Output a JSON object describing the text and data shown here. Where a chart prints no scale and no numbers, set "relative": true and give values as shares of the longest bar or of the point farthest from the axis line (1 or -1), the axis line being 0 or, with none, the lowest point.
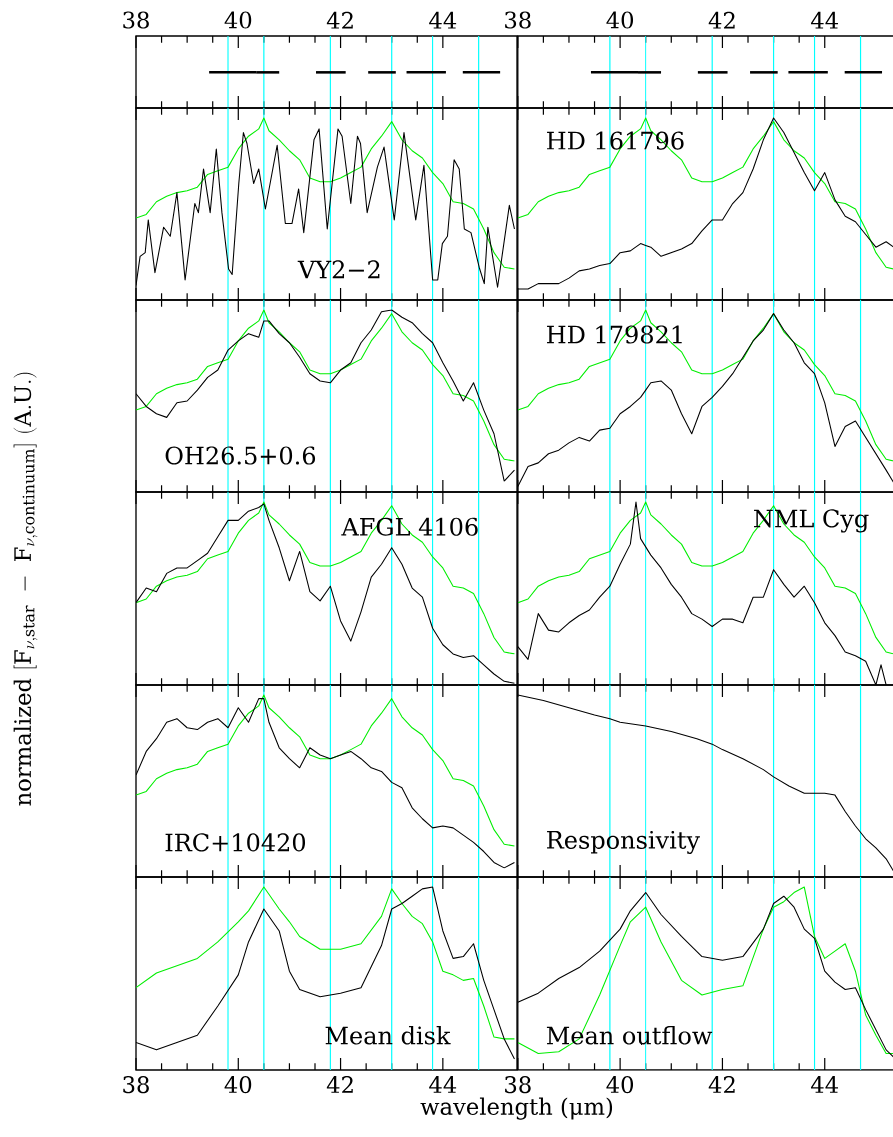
{
  "chart_data": [
    {
      "type": "bar",
      "orientation": "horizontal",
      "categories": [
        null
      ],
      "xlim": [
        38,
        45.45
      ],
      "xticks": [
        38,
        40,
        42,
        44
      ],
      "series": [
        {
          "color": "#000000",
          "base": [
            39.43
          ],
          "values": [
            0.92
          ]
        },
        {
          "color": "#000000",
          "base": [
            40.35
          ],
          "values": [
            0.45
          ]
        },
        {
          "color": "#000000",
          "base": [
            41.52
          ],
          "values": [
            0.58
          ]
        },
        {
          "color": "#000000",
          "base": [
            42.54
          ],
          "values": [
            0.54
          ]
        },
        {
          "color": "#000000",
          "base": [
            43.29
          ],
          "values": [
            0.77
          ]
        },
        {
          "color": "#000000",
          "base": [
            44.39
          ],
          "values": [
            0.73
          ]
        }
      ],
      "ref_lines": [
        {
          "axis": "x",
          "value": 39.8,
          "color": "#00ffff"
        },
        {
          "axis": "x",
          "value": 40.5,
          "color": "#00ffff"
        },
        {
          "axis": "x",
          "value": 41.8,
          "color": "#00ffff"
        },
        {
          "axis": "x",
          "value": 43.0,
          "color": "#00ffff"
        },
        {
          "axis": "x",
          "value": 43.8,
          "color": "#00ffff"
        },
        {
          "axis": "x",
          "value": 44.7,
          "color": "#00ffff"
        }
      ]
    },
    {
      "type": "bar",
      "orientation": "horizontal",
      "categories": [
        null
      ],
      "xlim": [
        38,
        45.35
      ],
      "xticks": [
        38,
        40,
        42,
        44
      ],
      "series": [
        {
          "color": "#000000",
          "base": [
            39.43
          ],
          "values": [
            0.92
          ]
        },
        {
          "color": "#000000",
          "base": [
            40.35
          ],
          "values": [
            0.45
          ]
        },
        {
          "color": "#000000",
          "base": [
            41.52
          ],
          "values": [
            0.58
          ]
        },
        {
          "color": "#000000",
          "base": [
            42.54
          ],
          "values": [
            0.54
          ]
        },
        {
          "color": "#000000",
          "base": [
            43.29
          ],
          "values": [
            0.77
          ]
        },
        {
          "color": "#000000",
          "base": [
            44.39
          ],
          "values": [
            0.73
          ]
        }
      ],
      "ref_lines": [
        {
          "axis": "x",
          "value": 39.8,
          "color": "#00ffff"
        },
        {
          "axis": "x",
          "value": 40.5,
          "color": "#00ffff"
        },
        {
          "axis": "x",
          "value": 41.8,
          "color": "#00ffff"
        },
        {
          "axis": "x",
          "value": 43.0,
          "color": "#00ffff"
        },
        {
          "axis": "x",
          "value": 43.8,
          "color": "#00ffff"
        },
        {
          "axis": "x",
          "value": 44.7,
          "color": "#00ffff"
        }
      ]
    },
    {
      "type": "line",
      "relative": true,
      "xlim": [
        38,
        45.45
      ],
      "xticks": [
        38,
        40,
        42,
        44
      ],
      "tick_labels": false,
      "annotations": [
        "VY2−2"
      ],
      "x": [
        38.0,
        38.2,
        38.4,
        38.6,
        38.8,
        39.0,
        39.2,
        39.4,
        39.6,
        39.8,
        40.0,
        40.2,
        40.4,
        40.5,
        40.6,
        40.8,
        41.0,
        41.2,
        41.4,
        41.6,
        41.8,
        42.0,
        42.2,
        42.4,
        42.6,
        42.8,
        43.0,
        43.2,
        43.4,
        43.6,
        43.8,
        44.0,
        44.2,
        44.4,
        44.6,
        44.8,
        45.0,
        45.2,
        45.4
      ],
      "series": [
        {
          "color": "#00ee00",
          "values": [
            0.45,
            0.47,
            0.54,
            0.57,
            0.59,
            0.6,
            0.62,
            0.69,
            0.71,
            0.73,
            0.83,
            0.9,
            0.94,
            1.0,
            0.93,
            0.88,
            0.82,
            0.77,
            0.67,
            0.65,
            0.65,
            0.67,
            0.7,
            0.73,
            0.83,
            0.9,
            0.98,
            0.88,
            0.82,
            0.78,
            0.7,
            0.64,
            0.54,
            0.53,
            0.5,
            0.39,
            0.26,
            0.18,
            0.17
          ]
        },
        {
          "color": "#000000",
          "x": [
            38.0,
            38.08,
            38.18,
            38.24,
            38.37,
            38.54,
            38.67,
            38.8,
            38.96,
            39.15,
            39.22,
            39.32,
            39.45,
            39.57,
            39.68,
            39.81,
            39.88,
            40.01,
            40.1,
            40.17,
            40.3,
            40.4,
            40.53,
            40.76,
            40.92,
            41.05,
            41.18,
            41.28,
            41.48,
            41.58,
            41.74,
            41.95,
            42.03,
            42.2,
            42.33,
            42.39,
            42.52,
            42.72,
            42.85,
            43.05,
            43.24,
            43.47,
            43.63,
            43.8,
            43.9,
            43.99,
            44.09,
            44.22,
            44.32,
            44.42,
            44.55,
            44.71,
            44.81,
            44.88,
            45.07,
            45.3,
            45.4
          ],
          "values": [
            0.08,
            0.24,
            0.26,
            0.44,
            0.15,
            0.4,
            0.35,
            0.59,
            0.11,
            0.53,
            0.48,
            0.72,
            0.48,
            0.83,
            0.48,
            0.17,
            0.14,
            0.64,
            0.92,
            0.86,
            0.64,
            0.72,
            0.5,
            0.85,
            0.42,
            0.42,
            0.61,
            0.37,
            0.88,
            0.94,
            0.39,
            0.94,
            0.9,
            0.53,
            0.9,
            0.86,
            0.48,
            0.73,
            0.84,
            0.44,
            0.92,
            0.44,
            0.74,
            0.11,
            0.11,
            0.31,
            0.35,
            0.77,
            0.72,
            0.39,
            0.37,
            0.18,
            0.09,
            0.4,
            0.07,
            0.52,
            0.39
          ]
        }
      ],
      "ref_lines": [
        {
          "axis": "x",
          "value": 39.8,
          "color": "#00ffff"
        },
        {
          "axis": "x",
          "value": 40.5,
          "color": "#00ffff"
        },
        {
          "axis": "x",
          "value": 41.8,
          "color": "#00ffff"
        },
        {
          "axis": "x",
          "value": 43.0,
          "color": "#00ffff"
        },
        {
          "axis": "x",
          "value": 43.8,
          "color": "#00ffff"
        },
        {
          "axis": "x",
          "value": 44.7,
          "color": "#00ffff"
        }
      ]
    },
    {
      "type": "line",
      "relative": true,
      "xlim": [
        38,
        45.35
      ],
      "xticks": [
        38,
        40,
        42,
        44
      ],
      "tick_labels": false,
      "annotations": [
        "HD 161796"
      ],
      "x": [
        38.0,
        38.2,
        38.4,
        38.6,
        38.8,
        39.0,
        39.2,
        39.4,
        39.6,
        39.8,
        40.0,
        40.2,
        40.4,
        40.5,
        40.6,
        40.8,
        41.0,
        41.2,
        41.4,
        41.6,
        41.8,
        42.0,
        42.2,
        42.4,
        42.6,
        42.8,
        43.0,
        43.2,
        43.4,
        43.6,
        43.8,
        44.0,
        44.2,
        44.4,
        44.6,
        44.8,
        45.0,
        45.2,
        45.35
      ],
      "series": [
        {
          "color": "#00ee00",
          "values": [
            0.45,
            0.47,
            0.54,
            0.57,
            0.59,
            0.6,
            0.62,
            0.69,
            0.71,
            0.73,
            0.83,
            0.9,
            0.94,
            1.0,
            0.93,
            0.88,
            0.82,
            0.77,
            0.67,
            0.65,
            0.65,
            0.67,
            0.7,
            0.73,
            0.83,
            0.9,
            0.98,
            0.88,
            0.82,
            0.78,
            0.7,
            0.64,
            0.54,
            0.53,
            0.5,
            0.39,
            0.26,
            0.18,
            0.17
          ]
        },
        {
          "color": "#000000",
          "values": [
            0.06,
            0.06,
            0.09,
            0.09,
            0.09,
            0.12,
            0.16,
            0.17,
            0.19,
            0.2,
            0.26,
            0.27,
            0.31,
            0.3,
            0.29,
            0.24,
            0.26,
            0.28,
            0.31,
            0.38,
            0.44,
            0.44,
            0.53,
            0.59,
            0.72,
            0.88,
            1.0,
            0.92,
            0.81,
            0.7,
            0.6,
            0.7,
            0.55,
            0.46,
            0.43,
            0.36,
            0.29,
            0.32,
            0.29
          ]
        }
      ],
      "ref_lines": [
        {
          "axis": "x",
          "value": 39.8,
          "color": "#00ffff"
        },
        {
          "axis": "x",
          "value": 40.5,
          "color": "#00ffff"
        },
        {
          "axis": "x",
          "value": 41.8,
          "color": "#00ffff"
        },
        {
          "axis": "x",
          "value": 43.0,
          "color": "#00ffff"
        },
        {
          "axis": "x",
          "value": 43.8,
          "color": "#00ffff"
        },
        {
          "axis": "x",
          "value": 44.7,
          "color": "#00ffff"
        }
      ]
    },
    {
      "type": "line",
      "relative": true,
      "xlim": [
        38,
        45.45
      ],
      "xticks": [
        38,
        40,
        42,
        44
      ],
      "tick_labels": false,
      "annotations": [
        "OH26.5+0.6"
      ],
      "x": [
        38.0,
        38.2,
        38.4,
        38.6,
        38.8,
        39.0,
        39.2,
        39.4,
        39.6,
        39.8,
        40.0,
        40.2,
        40.4,
        40.5,
        40.6,
        40.8,
        41.0,
        41.2,
        41.4,
        41.6,
        41.8,
        42.0,
        42.2,
        42.4,
        42.6,
        42.8,
        43.0,
        43.2,
        43.4,
        43.6,
        43.8,
        44.0,
        44.2,
        44.4,
        44.6,
        44.8,
        45.0,
        45.2,
        45.4
      ],
      "series": [
        {
          "color": "#00ee00",
          "values": [
            0.45,
            0.47,
            0.54,
            0.57,
            0.59,
            0.6,
            0.62,
            0.69,
            0.71,
            0.73,
            0.83,
            0.9,
            0.94,
            1.0,
            0.93,
            0.88,
            0.82,
            0.77,
            0.67,
            0.65,
            0.65,
            0.67,
            0.7,
            0.73,
            0.83,
            0.9,
            0.98,
            0.88,
            0.82,
            0.78,
            0.7,
            0.64,
            0.54,
            0.53,
            0.5,
            0.39,
            0.26,
            0.18,
            0.17
          ]
        },
        {
          "color": "#000000",
          "values": [
            0.54,
            0.47,
            0.43,
            0.41,
            0.49,
            0.5,
            0.56,
            0.63,
            0.67,
            0.78,
            0.83,
            0.87,
            0.85,
            0.94,
            0.94,
            0.87,
            0.82,
            0.74,
            0.65,
            0.61,
            0.6,
            0.67,
            0.71,
            0.82,
            0.89,
            0.99,
            1.0,
            0.96,
            0.93,
            0.87,
            0.82,
            0.71,
            0.61,
            0.5,
            0.6,
            0.45,
            0.32,
            0.06,
            0.12
          ]
        }
      ],
      "ref_lines": [
        {
          "axis": "x",
          "value": 39.8,
          "color": "#00ffff"
        },
        {
          "axis": "x",
          "value": 40.5,
          "color": "#00ffff"
        },
        {
          "axis": "x",
          "value": 41.8,
          "color": "#00ffff"
        },
        {
          "axis": "x",
          "value": 43.0,
          "color": "#00ffff"
        },
        {
          "axis": "x",
          "value": 43.8,
          "color": "#00ffff"
        },
        {
          "axis": "x",
          "value": 44.7,
          "color": "#00ffff"
        }
      ]
    },
    {
      "type": "line",
      "relative": true,
      "xlim": [
        38,
        45.35
      ],
      "xticks": [
        38,
        40,
        42,
        44
      ],
      "tick_labels": false,
      "annotations": [
        "HD 179821"
      ],
      "x": [
        38.0,
        38.2,
        38.4,
        38.6,
        38.8,
        39.0,
        39.2,
        39.4,
        39.6,
        39.8,
        40.0,
        40.2,
        40.4,
        40.5,
        40.6,
        40.8,
        41.0,
        41.2,
        41.4,
        41.6,
        41.8,
        42.0,
        42.2,
        42.4,
        42.6,
        42.8,
        43.0,
        43.2,
        43.4,
        43.6,
        43.8,
        44.0,
        44.2,
        44.4,
        44.6,
        44.8,
        45.0,
        45.2,
        45.35
      ],
      "series": [
        {
          "color": "#00ee00",
          "values": [
            0.45,
            0.47,
            0.54,
            0.57,
            0.59,
            0.6,
            0.62,
            0.69,
            0.71,
            0.73,
            0.83,
            0.9,
            0.94,
            1.0,
            0.93,
            0.88,
            0.82,
            0.77,
            0.67,
            0.65,
            0.65,
            0.67,
            0.7,
            0.73,
            0.83,
            0.9,
            0.98,
            0.88,
            0.82,
            0.78,
            0.7,
            0.64,
            0.54,
            0.53,
            0.5,
            0.39,
            0.26,
            0.18,
            0.17
          ]
        },
        {
          "color": "#000000",
          "values": [
            0.03,
            0.14,
            0.16,
            0.21,
            0.23,
            0.27,
            0.3,
            0.28,
            0.34,
            0.35,
            0.43,
            0.47,
            0.52,
            0.56,
            0.6,
            0.61,
            0.56,
            0.43,
            0.32,
            0.47,
            0.52,
            0.58,
            0.65,
            0.74,
            0.83,
            0.89,
            0.98,
            0.89,
            0.82,
            0.71,
            0.65,
            0.49,
            0.25,
            0.36,
            0.39,
            0.3,
            0.21,
            0.12,
            0.05
          ]
        }
      ],
      "ref_lines": [
        {
          "axis": "x",
          "value": 39.8,
          "color": "#00ffff"
        },
        {
          "axis": "x",
          "value": 40.5,
          "color": "#00ffff"
        },
        {
          "axis": "x",
          "value": 41.8,
          "color": "#00ffff"
        },
        {
          "axis": "x",
          "value": 43.0,
          "color": "#00ffff"
        },
        {
          "axis": "x",
          "value": 43.8,
          "color": "#00ffff"
        },
        {
          "axis": "x",
          "value": 44.7,
          "color": "#00ffff"
        }
      ]
    },
    {
      "type": "line",
      "relative": true,
      "xlim": [
        38,
        45.45
      ],
      "xticks": [
        38,
        40,
        42,
        44
      ],
      "tick_labels": false,
      "annotations": [
        "AFGL 4106"
      ],
      "ylabel": "\\mathrm{normalized\\ [F_{\\nu,star}\\ -\\ F_{\\nu,continuum}]\\ (A.U.)}",
      "x": [
        38.0,
        38.2,
        38.4,
        38.6,
        38.8,
        39.0,
        39.2,
        39.4,
        39.6,
        39.8,
        40.0,
        40.2,
        40.4,
        40.5,
        40.6,
        40.8,
        41.0,
        41.2,
        41.4,
        41.6,
        41.8,
        42.0,
        42.2,
        42.4,
        42.6,
        42.8,
        43.0,
        43.2,
        43.4,
        43.6,
        43.8,
        44.0,
        44.2,
        44.4,
        44.6,
        44.8,
        45.0,
        45.2,
        45.4
      ],
      "series": [
        {
          "color": "#00ee00",
          "values": [
            0.45,
            0.47,
            0.54,
            0.57,
            0.59,
            0.6,
            0.62,
            0.69,
            0.71,
            0.73,
            0.83,
            0.9,
            0.94,
            1.0,
            0.93,
            0.88,
            0.82,
            0.77,
            0.67,
            0.65,
            0.65,
            0.67,
            0.7,
            0.73,
            0.83,
            0.9,
            0.98,
            0.88,
            0.82,
            0.78,
            0.7,
            0.64,
            0.54,
            0.53,
            0.5,
            0.39,
            0.26,
            0.18,
            0.17
          ]
        },
        {
          "color": "#000000",
          "values": [
            0.45,
            0.53,
            0.51,
            0.61,
            0.64,
            0.64,
            0.68,
            0.72,
            0.81,
            0.9,
            0.9,
            0.95,
            0.97,
            0.99,
            0.9,
            0.75,
            0.57,
            0.73,
            0.51,
            0.46,
            0.54,
            0.35,
            0.24,
            0.4,
            0.59,
            0.66,
            0.75,
            0.66,
            0.53,
            0.48,
            0.31,
            0.22,
            0.17,
            0.15,
            0.16,
            0.11,
            0.06,
            0.02,
            0.01
          ]
        }
      ],
      "ref_lines": [
        {
          "axis": "x",
          "value": 39.8,
          "color": "#00ffff"
        },
        {
          "axis": "x",
          "value": 40.5,
          "color": "#00ffff"
        },
        {
          "axis": "x",
          "value": 41.8,
          "color": "#00ffff"
        },
        {
          "axis": "x",
          "value": 43.0,
          "color": "#00ffff"
        },
        {
          "axis": "x",
          "value": 43.8,
          "color": "#00ffff"
        },
        {
          "axis": "x",
          "value": 44.7,
          "color": "#00ffff"
        }
      ]
    },
    {
      "type": "line",
      "relative": true,
      "xlim": [
        38,
        45.35
      ],
      "xticks": [
        38,
        40,
        42,
        44
      ],
      "tick_labels": false,
      "annotations": [
        "NML Cyg"
      ],
      "x": [
        38.0,
        38.2,
        38.4,
        38.6,
        38.8,
        39.0,
        39.2,
        39.4,
        39.6,
        39.8,
        40.0,
        40.2,
        40.4,
        40.5,
        40.6,
        40.8,
        41.0,
        41.2,
        41.4,
        41.6,
        41.8,
        42.0,
        42.2,
        42.4,
        42.6,
        42.8,
        43.0,
        43.2,
        43.4,
        43.6,
        43.8,
        44.0,
        44.2,
        44.4,
        44.6,
        44.8,
        45.0,
        45.2,
        45.35
      ],
      "series": [
        {
          "color": "#00ee00",
          "values": [
            0.45,
            0.47,
            0.54,
            0.57,
            0.59,
            0.6,
            0.62,
            0.69,
            0.71,
            0.73,
            0.83,
            0.9,
            0.94,
            1.0,
            0.93,
            0.88,
            0.82,
            0.77,
            0.67,
            0.65,
            0.65,
            0.67,
            0.7,
            0.73,
            0.83,
            0.9,
            0.98,
            0.88,
            0.82,
            0.78,
            0.7,
            0.64,
            0.54,
            0.53,
            0.5,
            0.39,
            0.26,
            0.18,
            0.17
          ]
        },
        {
          "color": "#000000",
          "x": [
            38.0,
            38.2,
            38.4,
            38.6,
            38.8,
            39.0,
            39.2,
            39.4,
            39.6,
            39.8,
            40.0,
            40.2,
            40.31,
            40.4,
            40.6,
            40.8,
            41.0,
            41.2,
            41.4,
            41.6,
            41.8,
            42.0,
            42.2,
            42.4,
            42.6,
            42.8,
            43.0,
            43.2,
            43.4,
            43.6,
            43.8,
            44.0,
            44.2,
            44.4,
            44.6,
            44.8,
            45.0,
            45.1,
            45.2
          ],
          "values": [
            0.21,
            0.14,
            0.39,
            0.3,
            0.29,
            0.34,
            0.38,
            0.41,
            0.48,
            0.54,
            0.66,
            0.77,
            1.0,
            0.8,
            0.71,
            0.64,
            0.55,
            0.48,
            0.39,
            0.36,
            0.32,
            0.36,
            0.36,
            0.34,
            0.48,
            0.48,
            0.63,
            0.55,
            0.48,
            0.54,
            0.45,
            0.34,
            0.27,
            0.18,
            0.16,
            0.13,
            0.0,
            0.11,
            0.0
          ]
        }
      ],
      "ref_lines": [
        {
          "axis": "x",
          "value": 39.8,
          "color": "#00ffff"
        },
        {
          "axis": "x",
          "value": 40.5,
          "color": "#00ffff"
        },
        {
          "axis": "x",
          "value": 41.8,
          "color": "#00ffff"
        },
        {
          "axis": "x",
          "value": 43.0,
          "color": "#00ffff"
        },
        {
          "axis": "x",
          "value": 43.8,
          "color": "#00ffff"
        },
        {
          "axis": "x",
          "value": 44.7,
          "color": "#00ffff"
        }
      ]
    },
    {
      "type": "line",
      "relative": true,
      "xlim": [
        38,
        45.45
      ],
      "xticks": [
        38,
        40,
        42,
        44
      ],
      "tick_labels": false,
      "annotations": [
        "IRC+10420"
      ],
      "x": [
        38.0,
        38.2,
        38.4,
        38.6,
        38.8,
        39.0,
        39.2,
        39.4,
        39.6,
        39.8,
        40.0,
        40.2,
        40.4,
        40.5,
        40.6,
        40.8,
        41.0,
        41.2,
        41.4,
        41.6,
        41.8,
        42.0,
        42.2,
        42.4,
        42.6,
        42.8,
        43.0,
        43.2,
        43.4,
        43.6,
        43.8,
        44.0,
        44.2,
        44.4,
        44.6,
        44.8,
        45.0,
        45.2,
        45.4
      ],
      "series": [
        {
          "color": "#00ee00",
          "values": [
            0.45,
            0.47,
            0.54,
            0.57,
            0.59,
            0.6,
            0.62,
            0.69,
            0.71,
            0.73,
            0.83,
            0.9,
            0.94,
            1.0,
            0.93,
            0.88,
            0.82,
            0.77,
            0.67,
            0.65,
            0.65,
            0.67,
            0.7,
            0.73,
            0.83,
            0.9,
            0.98,
            0.88,
            0.82,
            0.78,
            0.7,
            0.64,
            0.54,
            0.53,
            0.5,
            0.39,
            0.26,
            0.18,
            0.17
          ]
        },
        {
          "color": "#000000",
          "values": [
            0.56,
            0.69,
            0.76,
            0.85,
            0.87,
            0.82,
            0.81,
            0.85,
            0.87,
            0.82,
            0.93,
            0.85,
            0.98,
            0.98,
            0.85,
            0.71,
            0.65,
            0.6,
            0.71,
            0.67,
            0.65,
            0.67,
            0.69,
            0.65,
            0.6,
            0.58,
            0.52,
            0.49,
            0.38,
            0.32,
            0.27,
            0.28,
            0.27,
            0.23,
            0.19,
            0.14,
            0.08,
            0.05,
            0.08
          ]
        }
      ],
      "ref_lines": [
        {
          "axis": "x",
          "value": 39.8,
          "color": "#00ffff"
        },
        {
          "axis": "x",
          "value": 40.5,
          "color": "#00ffff"
        },
        {
          "axis": "x",
          "value": 41.8,
          "color": "#00ffff"
        },
        {
          "axis": "x",
          "value": 43.0,
          "color": "#00ffff"
        },
        {
          "axis": "x",
          "value": 43.8,
          "color": "#00ffff"
        },
        {
          "axis": "x",
          "value": 44.7,
          "color": "#00ffff"
        }
      ]
    },
    {
      "type": "line",
      "relative": true,
      "xlim": [
        38,
        45.35
      ],
      "xticks": [
        38,
        40,
        42,
        44
      ],
      "tick_labels": false,
      "annotations": [
        "Responsivity"
      ],
      "x": [
        38.0,
        38.5,
        39.0,
        39.5,
        39.8,
        40.0,
        40.5,
        41.0,
        41.5,
        41.8,
        42.0,
        42.4,
        42.8,
        43.0,
        43.3,
        43.6,
        43.8,
        44.0,
        44.2,
        44.4,
        44.6,
        44.8,
        45.0,
        45.2,
        45.35
      ],
      "series": [
        {
          "color": "#000000",
          "values": [
            1.0,
            0.97,
            0.93,
            0.89,
            0.87,
            0.85,
            0.83,
            0.8,
            0.76,
            0.73,
            0.7,
            0.65,
            0.59,
            0.55,
            0.5,
            0.46,
            0.46,
            0.46,
            0.45,
            0.36,
            0.28,
            0.21,
            0.16,
            0.1,
            0.03
          ]
        }
      ],
      "ref_lines": [
        {
          "axis": "x",
          "value": 39.8,
          "color": "#00ffff"
        },
        {
          "axis": "x",
          "value": 40.5,
          "color": "#00ffff"
        },
        {
          "axis": "x",
          "value": 41.8,
          "color": "#00ffff"
        },
        {
          "axis": "x",
          "value": 43.0,
          "color": "#00ffff"
        },
        {
          "axis": "x",
          "value": 43.8,
          "color": "#00ffff"
        },
        {
          "axis": "x",
          "value": 44.7,
          "color": "#00ffff"
        }
      ]
    },
    {
      "type": "line",
      "relative": true,
      "xlim": [
        38,
        45.45
      ],
      "xticks": [
        38,
        40,
        42,
        44
      ],
      "annotations": [
        "Mean disk"
      ],
      "xlabel": "wavelength (μm)",
      "x": [
        38.0,
        38.4,
        38.8,
        39.2,
        39.6,
        40.0,
        40.2,
        40.5,
        40.8,
        41.0,
        41.2,
        41.6,
        42.0,
        42.4,
        42.8,
        43.0,
        43.2,
        43.4,
        43.6,
        43.8,
        44.0,
        44.2,
        44.4,
        44.6,
        44.8,
        45.0,
        45.2,
        45.4
      ],
      "series": [
        {
          "color": "#00ee00",
          "values": [
            0.45,
            0.53,
            0.57,
            0.61,
            0.7,
            0.81,
            0.87,
            1.0,
            0.88,
            0.81,
            0.73,
            0.66,
            0.66,
            0.69,
            0.84,
            0.99,
            0.91,
            0.84,
            0.8,
            0.7,
            0.54,
            0.52,
            0.49,
            0.5,
            0.35,
            0.18,
            0.17,
            0.17
          ]
        },
        {
          "color": "#000000",
          "values": [
            0.15,
            0.11,
            0.15,
            0.19,
            0.35,
            0.52,
            0.7,
            0.88,
            0.76,
            0.54,
            0.44,
            0.4,
            0.42,
            0.45,
            0.68,
            0.88,
            0.91,
            0.95,
            0.99,
            1.0,
            0.76,
            0.61,
            0.62,
            0.69,
            0.49,
            0.33,
            0.17,
            0.06
          ]
        }
      ],
      "ref_lines": [
        {
          "axis": "x",
          "value": 39.8,
          "color": "#00ffff"
        },
        {
          "axis": "x",
          "value": 40.5,
          "color": "#00ffff"
        },
        {
          "axis": "x",
          "value": 41.8,
          "color": "#00ffff"
        },
        {
          "axis": "x",
          "value": 43.0,
          "color": "#00ffff"
        },
        {
          "axis": "x",
          "value": 43.8,
          "color": "#00ffff"
        },
        {
          "axis": "x",
          "value": 44.7,
          "color": "#00ffff"
        }
      ]
    },
    {
      "type": "line",
      "relative": true,
      "xlim": [
        38,
        45.35
      ],
      "xticks": [
        38,
        40,
        42,
        44
      ],
      "annotations": [
        "Mean outflow"
      ],
      "x": [
        38.0,
        38.4,
        38.8,
        39.2,
        39.6,
        40.0,
        40.2,
        40.5,
        40.8,
        41.2,
        41.6,
        42.0,
        42.4,
        42.8,
        43.0,
        43.2,
        43.4,
        43.6,
        43.8,
        44.0,
        44.2,
        44.4,
        44.6,
        44.8,
        45.0,
        45.2,
        45.35
      ],
      "series": [
        {
          "color": "#00ee00",
          "values": [
            0.15,
            0.09,
            0.1,
            0.17,
            0.41,
            0.68,
            0.81,
            0.89,
            0.7,
            0.49,
            0.41,
            0.44,
            0.46,
            0.77,
            0.89,
            0.92,
            0.97,
            1.0,
            0.73,
            0.61,
            0.65,
            0.69,
            0.54,
            0.3,
            0.19,
            0.09,
            0.09
          ]
        },
        {
          "color": "#000000",
          "values": [
            0.37,
            0.42,
            0.5,
            0.56,
            0.65,
            0.77,
            0.87,
            0.97,
            0.85,
            0.73,
            0.62,
            0.6,
            0.62,
            0.77,
            0.91,
            0.95,
            0.89,
            0.77,
            0.72,
            0.54,
            0.48,
            0.44,
            0.45,
            0.33,
            0.22,
            0.11,
            0.07
          ]
        }
      ],
      "ref_lines": [
        {
          "axis": "x",
          "value": 39.8,
          "color": "#00ffff"
        },
        {
          "axis": "x",
          "value": 40.5,
          "color": "#00ffff"
        },
        {
          "axis": "x",
          "value": 41.8,
          "color": "#00ffff"
        },
        {
          "axis": "x",
          "value": 43.0,
          "color": "#00ffff"
        },
        {
          "axis": "x",
          "value": 43.8,
          "color": "#00ffff"
        },
        {
          "axis": "x",
          "value": 44.7,
          "color": "#00ffff"
        }
      ]
    }
  ]
}
